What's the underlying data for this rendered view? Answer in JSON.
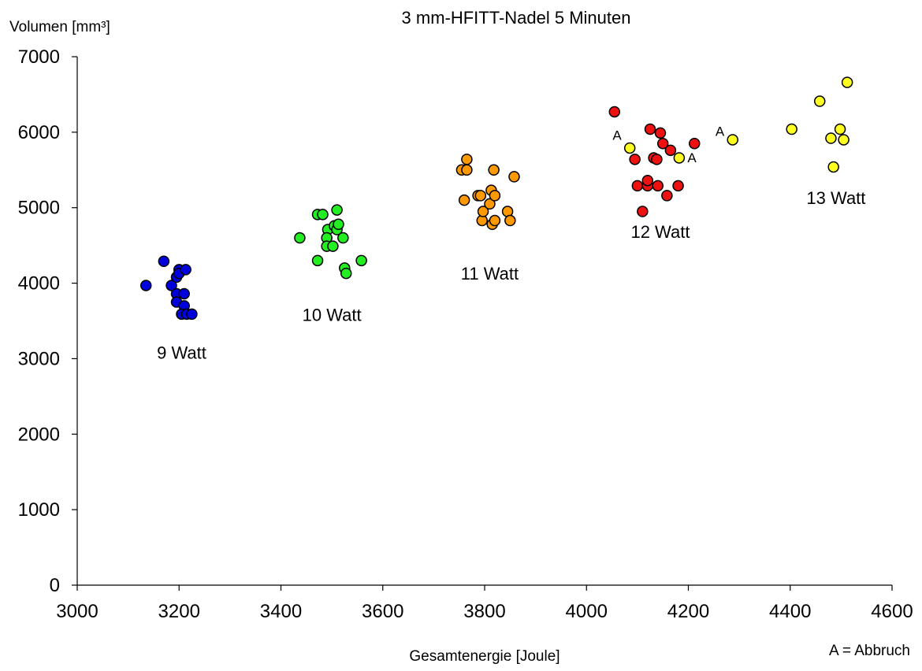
{
  "chart_data": {
    "type": "scatter",
    "title": "3 mm-HFITT-Nadel 5 Minuten",
    "xlabel": "Gesamtenergie [Joule]",
    "ylabel": "Volumen [mm³]",
    "xlim": [
      3000,
      4600
    ],
    "ylim": [
      0,
      7000
    ],
    "x_ticks": [
      3000,
      3200,
      3400,
      3600,
      3800,
      4000,
      4200,
      4400,
      4600
    ],
    "y_ticks": [
      0,
      1000,
      2000,
      3000,
      4000,
      5000,
      6000,
      7000
    ],
    "grid": false,
    "legend": "none",
    "footnote": "A = Abbruch",
    "series": [
      {
        "name": "9 Watt",
        "color": "#0000dd",
        "label_at": [
          3205,
          3000
        ],
        "points": [
          [
            3135,
            3970
          ],
          [
            3170,
            4290
          ],
          [
            3185,
            3970
          ],
          [
            3195,
            4080
          ],
          [
            3200,
            4180
          ],
          [
            3200,
            4130
          ],
          [
            3195,
            3860
          ],
          [
            3195,
            3750
          ],
          [
            3210,
            3860
          ],
          [
            3213,
            4180
          ],
          [
            3210,
            3700
          ],
          [
            3205,
            3590
          ],
          [
            3215,
            3590
          ],
          [
            3225,
            3590
          ]
        ]
      },
      {
        "name": "10 Watt",
        "color": "#22ee22",
        "label_at": [
          3500,
          3500
        ],
        "points": [
          [
            3437,
            4600
          ],
          [
            3472,
            4300
          ],
          [
            3472,
            4910
          ],
          [
            3482,
            4910
          ],
          [
            3492,
            4710
          ],
          [
            3490,
            4600
          ],
          [
            3490,
            4490
          ],
          [
            3502,
            4490
          ],
          [
            3505,
            4760
          ],
          [
            3510,
            4970
          ],
          [
            3510,
            4710
          ],
          [
            3513,
            4780
          ],
          [
            3522,
            4600
          ],
          [
            3525,
            4200
          ],
          [
            3528,
            4130
          ],
          [
            3558,
            4300
          ]
        ]
      },
      {
        "name": "11 Watt",
        "color": "#ff9900",
        "label_at": [
          3810,
          4050
        ],
        "points": [
          [
            3755,
            5500
          ],
          [
            3765,
            5640
          ],
          [
            3765,
            5500
          ],
          [
            3760,
            5100
          ],
          [
            3787,
            5160
          ],
          [
            3792,
            5160
          ],
          [
            3795,
            4830
          ],
          [
            3797,
            4950
          ],
          [
            3810,
            5050
          ],
          [
            3813,
            5230
          ],
          [
            3815,
            4780
          ],
          [
            3818,
            5500
          ],
          [
            3820,
            4830
          ],
          [
            3820,
            5160
          ],
          [
            3845,
            4950
          ],
          [
            3850,
            4830
          ],
          [
            3858,
            5410
          ]
        ]
      },
      {
        "name": "12 Watt",
        "color": "#ee1111",
        "label_at": [
          4145,
          4600
        ],
        "points": [
          [
            4055,
            6270
          ],
          [
            4095,
            5640
          ],
          [
            4100,
            5290
          ],
          [
            4110,
            4950
          ],
          [
            4120,
            5290
          ],
          [
            4120,
            5360
          ],
          [
            4125,
            6040
          ],
          [
            4132,
            5660
          ],
          [
            4138,
            5640
          ],
          [
            4140,
            5290
          ],
          [
            4145,
            5990
          ],
          [
            4150,
            5850
          ],
          [
            4158,
            5160
          ],
          [
            4165,
            5760
          ],
          [
            4180,
            5290
          ],
          [
            4212,
            5850
          ]
        ]
      },
      {
        "name": "13 Watt",
        "color": "#ffff22",
        "label_at": [
          4490,
          5050
        ],
        "points": [
          [
            4085,
            5790
          ],
          [
            4182,
            5660
          ],
          [
            4287,
            5900
          ],
          [
            4403,
            6040
          ],
          [
            4458,
            6410
          ],
          [
            4480,
            5920
          ],
          [
            4485,
            5540
          ],
          [
            4498,
            6040
          ],
          [
            4505,
            5900
          ],
          [
            4512,
            6660
          ]
        ]
      }
    ],
    "annotations": [
      {
        "text": "A",
        "at": [
          4060,
          5900
        ]
      },
      {
        "text": "A",
        "at": [
          4207,
          5600
        ]
      },
      {
        "text": "A",
        "at": [
          4262,
          5950
        ]
      }
    ]
  }
}
